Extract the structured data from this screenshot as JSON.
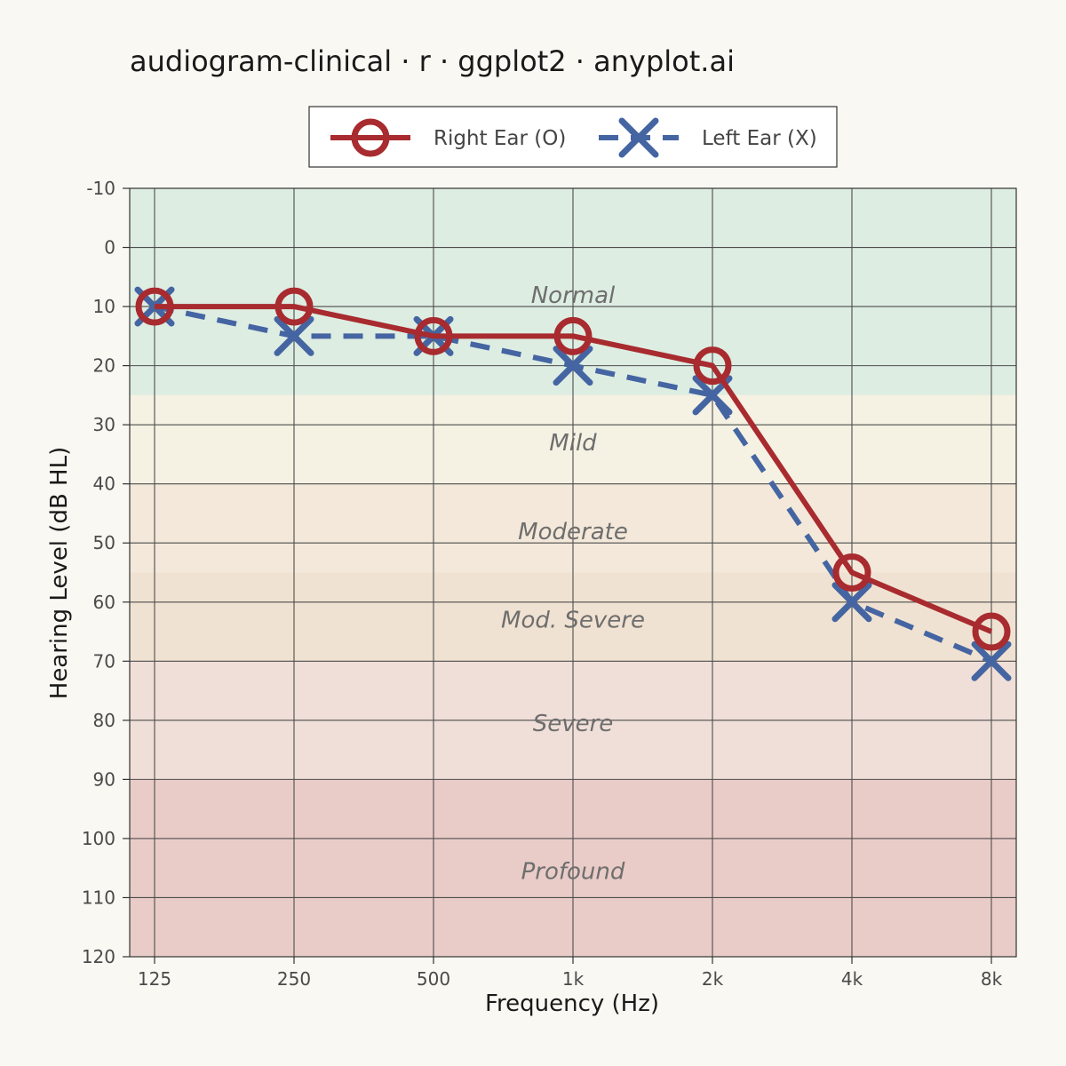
{
  "chart_data": {
    "type": "line",
    "title": "audiogram-clinical · r · ggplot2 · anyplot.ai",
    "xlabel": "Frequency (Hz)",
    "ylabel": "Hearing Level (dB HL)",
    "categories": [
      "125",
      "250",
      "500",
      "1k",
      "2k",
      "4k",
      "8k"
    ],
    "yticks": [
      "-10",
      "0",
      "10",
      "20",
      "30",
      "40",
      "50",
      "60",
      "70",
      "80",
      "90",
      "100",
      "110",
      "120"
    ],
    "ylim": [
      -10,
      120
    ],
    "y_reversed": true,
    "grid": true,
    "legend_position": "top",
    "series": [
      {
        "name": "Right Ear (O)",
        "marker": "circle",
        "line_style": "solid",
        "color": "#a82b2f",
        "values": [
          10,
          10,
          15,
          15,
          20,
          55,
          65
        ]
      },
      {
        "name": "Left Ear (X)",
        "marker": "cross",
        "line_style": "dashed",
        "color": "#4565a2",
        "values": [
          10,
          15,
          15,
          20,
          25,
          60,
          70
        ]
      }
    ],
    "bands": [
      {
        "label": "Normal",
        "from": -10,
        "to": 25,
        "color": "#ddede2"
      },
      {
        "label": "Mild",
        "from": 25,
        "to": 40,
        "color": "#f5f1e3"
      },
      {
        "label": "Moderate",
        "from": 40,
        "to": 55,
        "color": "#f3e8d9"
      },
      {
        "label": "Mod. Severe",
        "from": 55,
        "to": 70,
        "color": "#f0e2d2"
      },
      {
        "label": "Severe",
        "from": 70,
        "to": 90,
        "color": "#f0dfd8"
      },
      {
        "label": "Profound",
        "from": 90,
        "to": 120,
        "color": "#e9ccc7"
      }
    ],
    "band_label_values": [
      8,
      33,
      48,
      63,
      80.5,
      105.5
    ]
  }
}
